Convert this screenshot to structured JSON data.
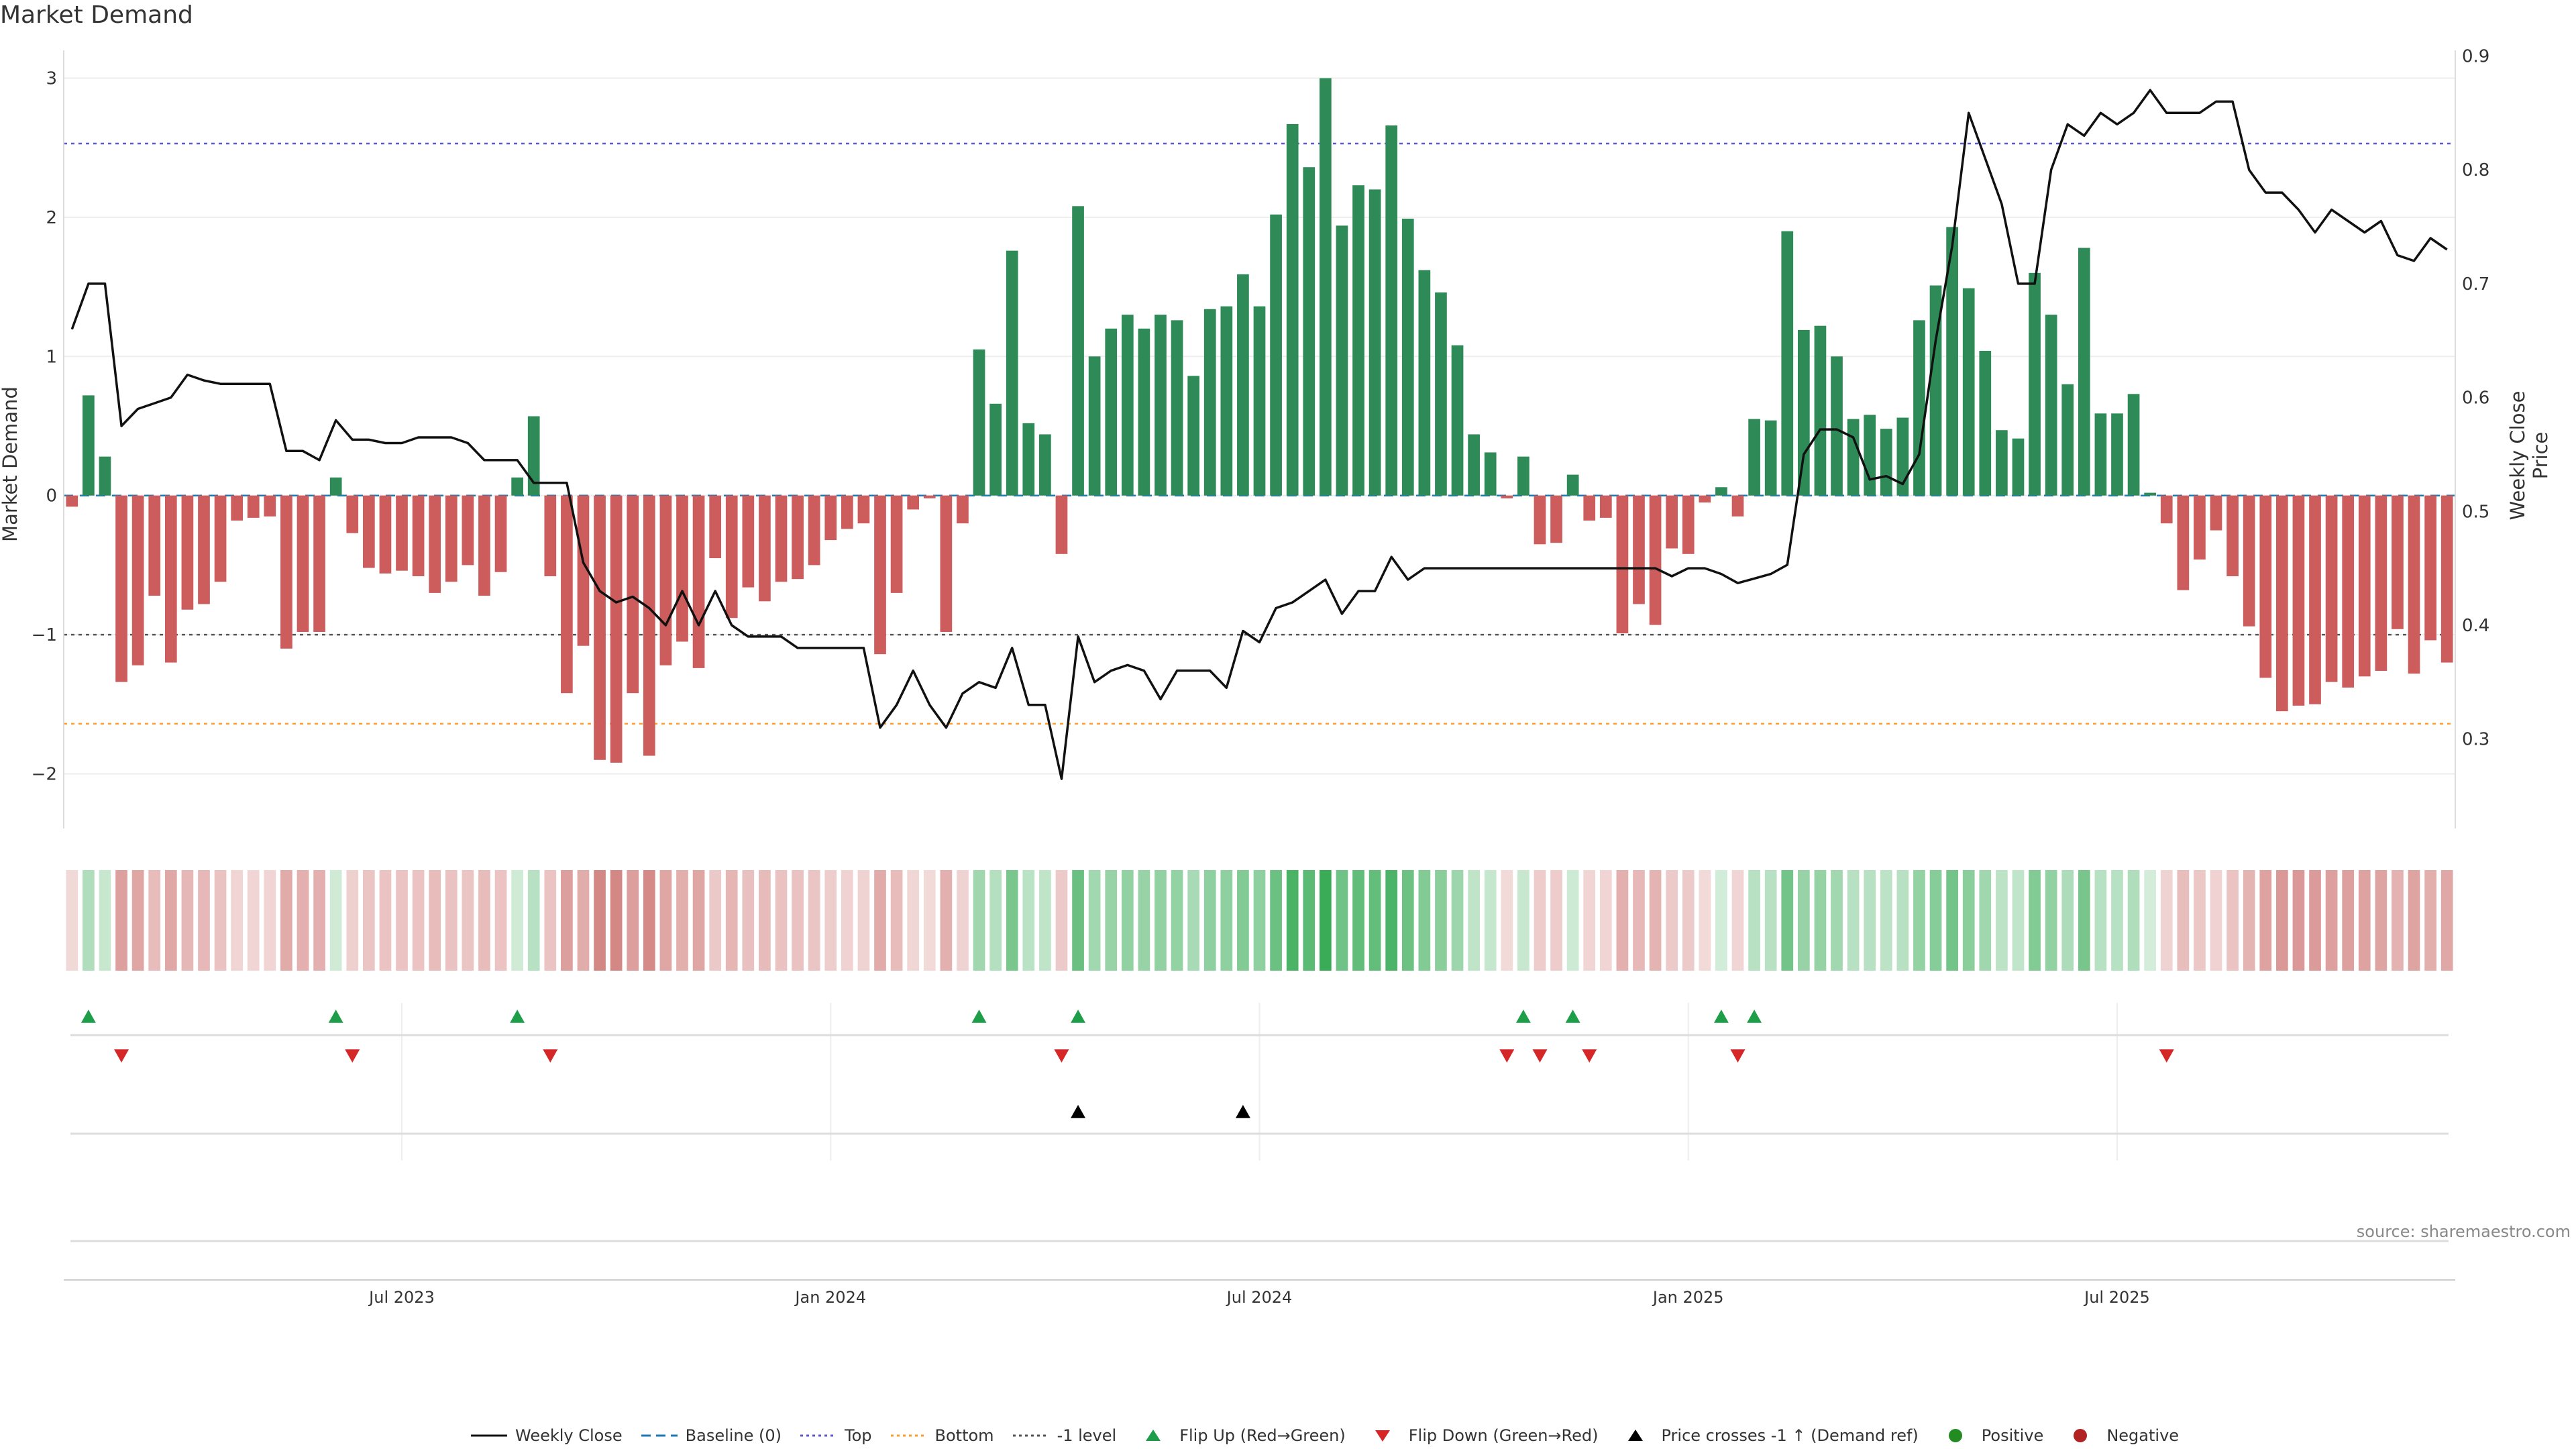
{
  "title": "Market Demand",
  "source": "source: sharemaestro.com",
  "y_left_label": "Market Demand",
  "y_right_label": "Weekly Close Price",
  "legend": [
    {
      "label": "Weekly Close",
      "icon": "line",
      "color": "#111111"
    },
    {
      "label": "Baseline (0)",
      "icon": "dash",
      "color": "#1f77b4"
    },
    {
      "label": "Top",
      "icon": "dot",
      "color": "#5a5acb"
    },
    {
      "label": "Bottom",
      "icon": "dot",
      "color": "#ff9a2e"
    },
    {
      "label": "-1 level",
      "icon": "dot",
      "color": "#555555"
    },
    {
      "label": "Flip Up (Red→Green)",
      "icon": "tri-up",
      "color": "#1f9e4a"
    },
    {
      "label": "Flip Down (Green→Red)",
      "icon": "tri-down",
      "color": "#d62728"
    },
    {
      "label": "Price crosses -1 ↑ (Demand ref)",
      "icon": "tri-up",
      "color": "#000000"
    },
    {
      "label": "Positive",
      "icon": "circle",
      "color": "#228b22"
    },
    {
      "label": "Negative",
      "icon": "circle",
      "color": "#b22222"
    }
  ],
  "chart_data": {
    "type": "bar",
    "x_ticks": [
      "Jul 2023",
      "Jan 2024",
      "Jul 2024",
      "Jan 2025",
      "Jul 2025"
    ],
    "y_left_ticks": [
      "3",
      "2",
      "1",
      "0",
      "−1",
      "−2"
    ],
    "y_right_ticks": [
      "0.9",
      "0.8",
      "0.7",
      "0.6",
      "0.5",
      "0.4",
      "0.3"
    ],
    "ylim_left": [
      -2.2,
      3.2
    ],
    "ylim_right": [
      0.245,
      0.905
    ],
    "reference_lines": {
      "top": 2.53,
      "bottom": -1.64,
      "minus_one": -1,
      "baseline": 0
    },
    "colors": {
      "positive": "#2e8b57",
      "negative": "#cd5c5c",
      "price": "#111111"
    },
    "demand": [
      -0.08,
      0.72,
      0.28,
      -1.34,
      -1.22,
      -0.72,
      -1.2,
      -0.82,
      -0.78,
      -0.62,
      -0.18,
      -0.16,
      -0.15,
      -1.1,
      -0.98,
      -0.98,
      0.13,
      -0.27,
      -0.52,
      -0.56,
      -0.54,
      -0.58,
      -0.7,
      -0.62,
      -0.5,
      -0.72,
      -0.55,
      0.13,
      0.57,
      -0.58,
      -1.42,
      -1.08,
      -1.9,
      -1.92,
      -1.42,
      -1.87,
      -1.22,
      -1.05,
      -1.24,
      -0.45,
      -0.88,
      -0.66,
      -0.76,
      -0.62,
      -0.6,
      -0.5,
      -0.32,
      -0.24,
      -0.2,
      -1.14,
      -0.7,
      -0.1,
      -0.02,
      -0.98,
      -0.2,
      1.05,
      0.66,
      1.76,
      0.52,
      0.44,
      -0.42,
      2.08,
      1.0,
      1.2,
      1.3,
      1.2,
      1.3,
      1.26,
      0.86,
      1.34,
      1.36,
      1.59,
      1.36,
      2.02,
      2.67,
      2.36,
      3.0,
      1.94,
      2.23,
      2.2,
      2.66,
      1.99,
      1.62,
      1.46,
      1.08,
      0.44,
      0.31,
      -0.02,
      0.28,
      -0.35,
      -0.34,
      0.15,
      -0.18,
      -0.16,
      -0.99,
      -0.78,
      -0.93,
      -0.38,
      -0.42,
      -0.05,
      0.06,
      -0.15,
      0.55,
      0.54,
      1.9,
      1.19,
      1.22,
      1.0,
      0.55,
      0.58,
      0.48,
      0.56,
      1.26,
      1.51,
      1.93,
      1.49,
      1.04,
      0.47,
      0.41,
      1.6,
      1.3,
      0.8,
      1.78,
      0.59,
      0.59,
      0.73,
      0.02,
      -0.2,
      -0.68,
      -0.46,
      -0.25,
      -0.58,
      -0.94,
      -1.31,
      -1.55,
      -1.51,
      -1.5,
      -1.34,
      -1.38,
      -1.3,
      -1.26,
      -0.96,
      -1.28,
      -1.04,
      -1.2
    ],
    "weekly_close": [
      0.66,
      0.7,
      0.7,
      0.575,
      0.59,
      0.595,
      0.6,
      0.62,
      0.615,
      0.612,
      0.612,
      0.612,
      0.612,
      0.553,
      0.553,
      0.545,
      0.58,
      0.563,
      0.563,
      0.56,
      0.56,
      0.565,
      0.565,
      0.565,
      0.56,
      0.545,
      0.545,
      0.545,
      0.525,
      0.525,
      0.525,
      0.455,
      0.43,
      0.42,
      0.425,
      0.415,
      0.4,
      0.43,
      0.4,
      0.43,
      0.4,
      0.39,
      0.39,
      0.39,
      0.38,
      0.38,
      0.38,
      0.38,
      0.38,
      0.31,
      0.33,
      0.36,
      0.33,
      0.31,
      0.34,
      0.35,
      0.345,
      0.38,
      0.33,
      0.33,
      0.265,
      0.39,
      0.35,
      0.36,
      0.365,
      0.36,
      0.335,
      0.36,
      0.36,
      0.36,
      0.345,
      0.395,
      0.385,
      0.415,
      0.42,
      0.43,
      0.44,
      0.41,
      0.43,
      0.43,
      0.46,
      0.44,
      0.45,
      0.45,
      0.45,
      0.45,
      0.45,
      0.45,
      0.45,
      0.45,
      0.45,
      0.45,
      0.45,
      0.45,
      0.45,
      0.45,
      0.45,
      0.443,
      0.45,
      0.45,
      0.445,
      0.437,
      0.441,
      0.445,
      0.453,
      0.55,
      0.572,
      0.572,
      0.565,
      0.528,
      0.531,
      0.524,
      0.55,
      0.65,
      0.733,
      0.85,
      0.81,
      0.77,
      0.7,
      0.7,
      0.8,
      0.84,
      0.83,
      0.85,
      0.84,
      0.85,
      0.87,
      0.85,
      0.85,
      0.85,
      0.86,
      0.86,
      0.8,
      0.78,
      0.78,
      0.765,
      0.745,
      0.765,
      0.755,
      0.745,
      0.755,
      0.725,
      0.72,
      0.74,
      0.73
    ],
    "flip_up_idx": [
      1,
      16,
      27,
      55,
      61,
      88,
      91,
      100,
      102
    ],
    "flip_down_idx": [
      3,
      17,
      29,
      60,
      87,
      89,
      92,
      101,
      127
    ],
    "price_cross_idx": [
      61,
      71
    ]
  }
}
